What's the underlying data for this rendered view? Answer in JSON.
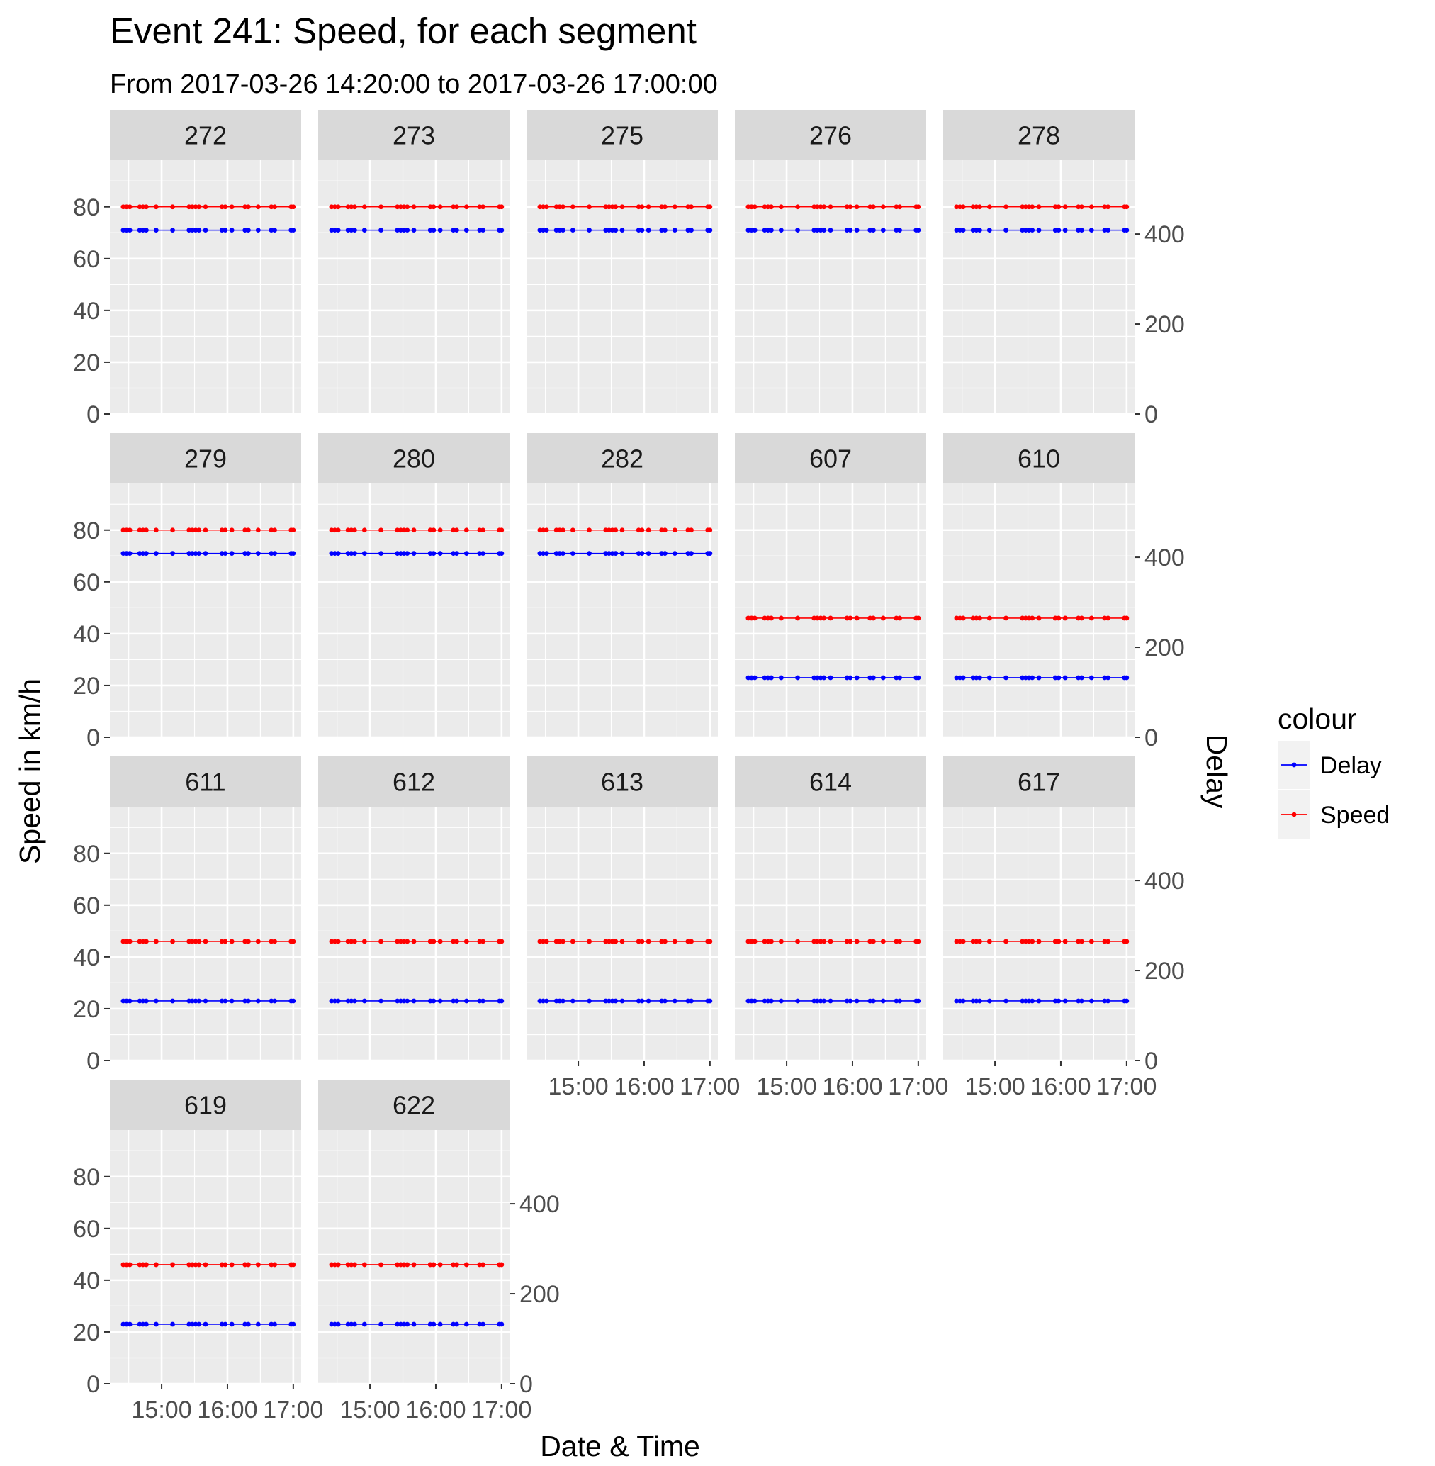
{
  "chart_data": {
    "type": "line",
    "title": "Event 241: Speed, for each segment",
    "subtitle": "From 2017-03-26 14:20:00 to 2017-03-26 17:00:00",
    "xlabel": "Date & Time",
    "ylabel": "Speed in km/h",
    "y2label": "Delay",
    "x_range": [
      "2017-03-26 14:20:00",
      "2017-03-26 17:00:00"
    ],
    "x_ticks": [
      "15:00",
      "16:00",
      "17:00"
    ],
    "ylim": [
      0,
      98
    ],
    "y_ticks": [
      0,
      20,
      40,
      60,
      80
    ],
    "y2lim": [
      0,
      564
    ],
    "y2_ticks": [
      0,
      200,
      400
    ],
    "grid": true,
    "legend": {
      "title": "colour",
      "position": "right",
      "entries": [
        {
          "label": "Delay",
          "color": "#0000ff"
        },
        {
          "label": "Speed",
          "color": "#ff0000"
        }
      ]
    },
    "sample_times": [
      "14:25",
      "14:28",
      "14:31",
      "14:40",
      "14:43",
      "14:46",
      "14:55",
      "15:10",
      "15:25",
      "15:28",
      "15:31",
      "15:34",
      "15:40",
      "15:55",
      "15:58",
      "16:04",
      "16:16",
      "16:19",
      "16:28",
      "16:40",
      "16:43",
      "16:58",
      "17:00"
    ],
    "panels": [
      {
        "segment": "272",
        "speed": 80,
        "delay": 71
      },
      {
        "segment": "273",
        "speed": 80,
        "delay": 71
      },
      {
        "segment": "275",
        "speed": 80,
        "delay": 71
      },
      {
        "segment": "276",
        "speed": 80,
        "delay": 71
      },
      {
        "segment": "278",
        "speed": 80,
        "delay": 71
      },
      {
        "segment": "279",
        "speed": 80,
        "delay": 71
      },
      {
        "segment": "280",
        "speed": 80,
        "delay": 71
      },
      {
        "segment": "282",
        "speed": 80,
        "delay": 71
      },
      {
        "segment": "607",
        "speed": 46,
        "delay": 23
      },
      {
        "segment": "610",
        "speed": 46,
        "delay": 23
      },
      {
        "segment": "611",
        "speed": 46,
        "delay": 23
      },
      {
        "segment": "612",
        "speed": 46,
        "delay": 23
      },
      {
        "segment": "613",
        "speed": 46,
        "delay": 23
      },
      {
        "segment": "614",
        "speed": 46,
        "delay": 23
      },
      {
        "segment": "617",
        "speed": 46,
        "delay": 23
      },
      {
        "segment": "619",
        "speed": 46,
        "delay": 23
      },
      {
        "segment": "622",
        "speed": 46,
        "delay": 23
      }
    ],
    "series_colors": {
      "Delay": "#0000ff",
      "Speed": "#ff0000"
    }
  }
}
